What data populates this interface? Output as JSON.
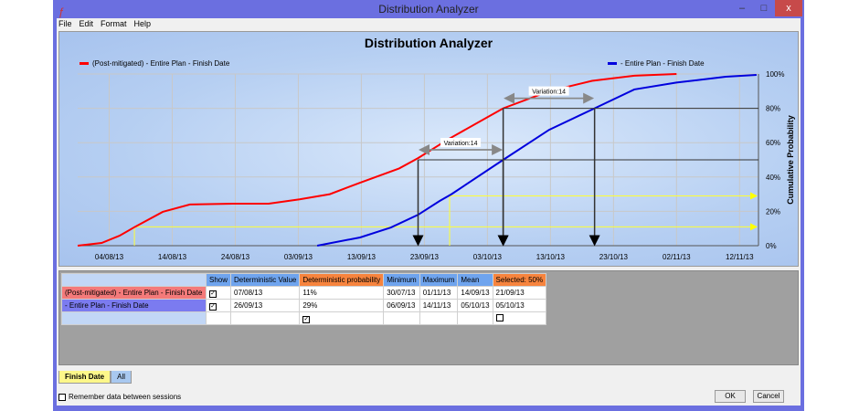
{
  "window": {
    "title": "Distribution Analyzer",
    "minimize": "–",
    "maximize": "□",
    "close": "x"
  },
  "menu": [
    "File",
    "Edit",
    "Format",
    "Help"
  ],
  "chart_data": {
    "type": "line",
    "title": "Distribution Analyzer",
    "ylabel": "Cumulative Probability",
    "ylim": [
      0,
      100
    ],
    "x_unit": "days since 30/07/13",
    "xlim": [
      0,
      108
    ],
    "x_ticks": [
      {
        "day": 5,
        "label": "04/08/13"
      },
      {
        "day": 15,
        "label": "14/08/13"
      },
      {
        "day": 25,
        "label": "24/08/13"
      },
      {
        "day": 35,
        "label": "03/09/13"
      },
      {
        "day": 45,
        "label": "13/09/13"
      },
      {
        "day": 55,
        "label": "23/09/13"
      },
      {
        "day": 65,
        "label": "03/10/13"
      },
      {
        "day": 75,
        "label": "13/10/13"
      },
      {
        "day": 85,
        "label": "23/10/13"
      },
      {
        "day": 95,
        "label": "02/11/13"
      },
      {
        "day": 105,
        "label": "12/11/13"
      }
    ],
    "y_ticks": [
      {
        "v": 0,
        "label": "0%"
      },
      {
        "v": 20,
        "label": "20%"
      },
      {
        "v": 40,
        "label": "40%"
      },
      {
        "v": 60,
        "label": "60%"
      },
      {
        "v": 80,
        "label": "80%"
      },
      {
        "v": 100,
        "label": "100%"
      }
    ],
    "legend_position": "top",
    "series": [
      {
        "name": "(Post-mitigated) - Entire Plan - Finish Date",
        "color": "#ff0000",
        "points": [
          [
            0,
            0
          ],
          [
            3.8,
            1.6
          ],
          [
            6.7,
            5.9
          ],
          [
            9.1,
            11
          ],
          [
            13.5,
            19.7
          ],
          [
            17.8,
            24
          ],
          [
            25.5,
            24.5
          ],
          [
            30.3,
            24.5
          ],
          [
            35.2,
            27
          ],
          [
            40,
            30
          ],
          [
            44.8,
            36.7
          ],
          [
            51,
            45
          ],
          [
            54,
            51
          ],
          [
            58.8,
            62
          ],
          [
            67.5,
            80
          ],
          [
            74.8,
            90
          ],
          [
            81.6,
            96
          ],
          [
            88.3,
            99
          ],
          [
            95,
            100
          ]
        ]
      },
      {
        "name": "- Entire Plan - Finish Date",
        "color": "#0000dd",
        "points": [
          [
            38,
            0
          ],
          [
            44.8,
            4.8
          ],
          [
            49.7,
            10.6
          ],
          [
            54,
            18
          ],
          [
            57.4,
            26
          ],
          [
            59.3,
            30
          ],
          [
            67.5,
            50
          ],
          [
            74.8,
            67.5
          ],
          [
            82,
            80
          ],
          [
            88.3,
            91
          ],
          [
            95,
            95
          ],
          [
            102.8,
            98.4
          ],
          [
            107.7,
            99.5
          ]
        ]
      }
    ],
    "annotations": [
      {
        "type": "variation",
        "level": 50,
        "from": 54,
        "to": 67.5,
        "label": "Variation:14"
      },
      {
        "type": "variation",
        "level": 80,
        "from": 67.5,
        "to": 82,
        "label": "Variation:14"
      },
      {
        "type": "deterministic",
        "level": 11,
        "day": 9,
        "color": "#ffff33"
      },
      {
        "type": "deterministic",
        "level": 29,
        "day": 59,
        "color": "#ffff33"
      }
    ]
  },
  "table": {
    "headers": [
      "Show",
      "Deterministic Value",
      "Deterministic probability",
      "Minimum",
      "Maximum",
      "Mean",
      "Selected: 50%"
    ],
    "rows": [
      {
        "name": "(Post-mitigated) - Entire Plan - Finish Date",
        "color": "#f47a7a",
        "show": true,
        "det_value": "07/08/13",
        "det_prob": "11%",
        "min": "30/07/13",
        "max": "01/11/13",
        "mean": "14/09/13",
        "selected": "21/09/13"
      },
      {
        "name": "- Entire Plan - Finish Date",
        "color": "#7b7bf0",
        "show": true,
        "det_value": "26/09/13",
        "det_prob": "29%",
        "min": "06/09/13",
        "max": "14/11/13",
        "mean": "05/10/13",
        "selected": "05/10/13"
      }
    ],
    "footer": {
      "det_prob_checked": true,
      "selected_checked": false
    }
  },
  "tabs": [
    "Finish Date",
    "All"
  ],
  "remember_label": "Remember data between sessions",
  "remember_checked": false,
  "ok_label": "OK",
  "cancel_label": "Cancel"
}
